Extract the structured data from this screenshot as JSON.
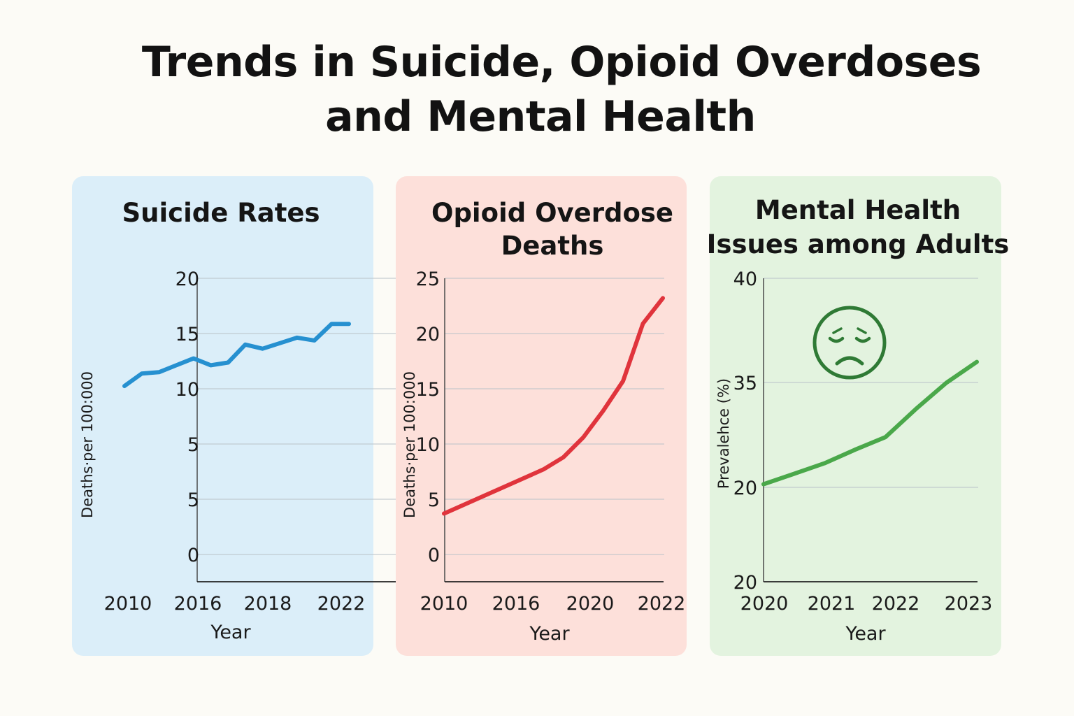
{
  "title_lines": [
    "Trends in Suicide, Opioid Overdoses",
    "and Mental Health"
  ],
  "chart_data": [
    {
      "type": "line",
      "title_lines": [
        "Suicide Rates"
      ],
      "xlabel": "Year",
      "ylabel": "Deaths·per 100:000",
      "x_tick_labels": [
        "2010",
        "2016",
        "2018",
        "2022"
      ],
      "y_tick_labels": [
        "20",
        "15",
        "10",
        "5",
        "5",
        "0"
      ],
      "color": "#2690d0",
      "series": [
        {
          "values": [
            12.2,
            13.1,
            13.2,
            13.7,
            14.2,
            13.7,
            13.9,
            15.2,
            14.9,
            15.3,
            15.7,
            15.5,
            16.7,
            16.7
          ]
        }
      ]
    },
    {
      "type": "line",
      "title_lines": [
        "Opioid Overdose",
        "Deaths"
      ],
      "xlabel": "Year",
      "ylabel": "Deaths·per 100:000",
      "x_tick_labels": [
        "2010",
        "2016",
        "2020",
        "2022"
      ],
      "y_tick_labels": [
        "25",
        "20",
        "15",
        "10",
        "5",
        "0"
      ],
      "color": "#e0343c",
      "series": [
        {
          "values": [
            3.7,
            4.5,
            5.3,
            6.1,
            6.9,
            7.7,
            8.8,
            10.6,
            13.0,
            15.7,
            20.9,
            23.2
          ]
        }
      ]
    },
    {
      "type": "line",
      "title_lines": [
        "Mental Health",
        "Issues among Adults"
      ],
      "xlabel": "Year",
      "ylabel": "Prevalehce (%)",
      "x_tick_labels": [
        "2020",
        "2021",
        "2022",
        "2023"
      ],
      "y_tick_labels": [
        "40",
        "35",
        "20",
        "20"
      ],
      "color": "#4aa84a",
      "icon": "sad-face-icon",
      "series": [
        {
          "values": [
            20.3,
            21.3,
            22.3,
            23.6,
            24.8,
            27.5,
            30.0,
            32.0
          ]
        }
      ]
    }
  ]
}
